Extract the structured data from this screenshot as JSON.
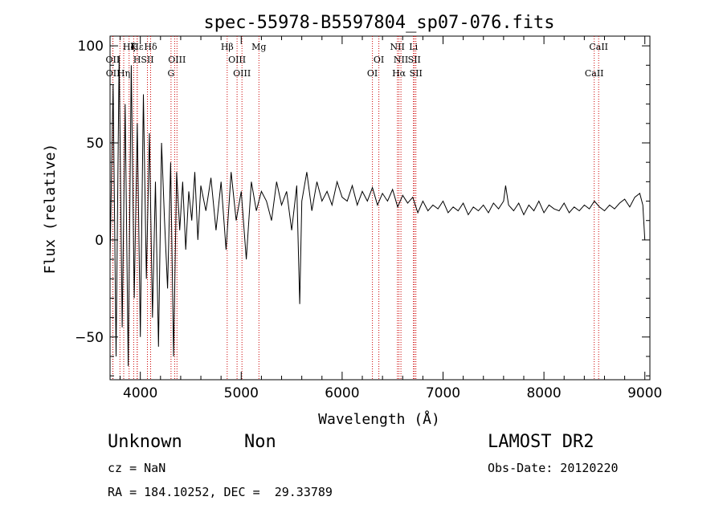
{
  "chart_data": {
    "type": "line",
    "title": "spec-55978-B5597804_sp07-076.fits",
    "xlabel": "Wavelength (Å)",
    "ylabel": "Flux (relative)",
    "xlim": [
      3700,
      9050
    ],
    "ylim": [
      -72,
      105
    ],
    "x_ticks": [
      4000,
      5000,
      6000,
      7000,
      8000,
      9000
    ],
    "y_ticks": [
      -50,
      0,
      50,
      100
    ],
    "grid": false,
    "line_color": "#000000",
    "marker_color": "#cc0000",
    "series": [
      {
        "x": [
          3700,
          3730,
          3760,
          3790,
          3820,
          3850,
          3880,
          3910,
          3940,
          3970,
          4000,
          4030,
          4060,
          4090,
          4120,
          4150,
          4180,
          4210,
          4240,
          4270,
          4300,
          4330,
          4360,
          4390,
          4420,
          4450,
          4480,
          4510,
          4540,
          4570,
          4600,
          4650,
          4700,
          4750,
          4800,
          4850,
          4900,
          4950,
          5000,
          5050,
          5100,
          5150,
          5200,
          5250,
          5300,
          5350,
          5400,
          5450,
          5500,
          5550,
          5580,
          5600,
          5650,
          5700,
          5750,
          5800,
          5850,
          5900,
          5950,
          6000,
          6050,
          6100,
          6150,
          6200,
          6250,
          6300,
          6350,
          6400,
          6450,
          6500,
          6550,
          6600,
          6650,
          6700,
          6750,
          6800,
          6850,
          6900,
          6950,
          7000,
          7050,
          7100,
          7150,
          7200,
          7250,
          7300,
          7350,
          7400,
          7450,
          7500,
          7550,
          7600,
          7620,
          7650,
          7700,
          7750,
          7800,
          7850,
          7900,
          7950,
          8000,
          8050,
          8100,
          8150,
          8200,
          8250,
          8300,
          8350,
          8400,
          8450,
          8500,
          8550,
          8600,
          8650,
          8700,
          8750,
          8800,
          8850,
          8900,
          8950,
          8980,
          9000
        ],
        "y": [
          -10,
          80,
          -60,
          95,
          -45,
          70,
          -65,
          90,
          -30,
          60,
          -50,
          75,
          -20,
          55,
          -40,
          30,
          -55,
          50,
          10,
          -25,
          40,
          -60,
          35,
          5,
          30,
          -5,
          25,
          10,
          35,
          0,
          28,
          15,
          32,
          5,
          30,
          -5,
          35,
          10,
          25,
          -10,
          30,
          15,
          25,
          20,
          10,
          30,
          18,
          25,
          5,
          28,
          -33,
          20,
          35,
          15,
          30,
          20,
          25,
          18,
          30,
          22,
          20,
          28,
          18,
          25,
          20,
          27,
          18,
          24,
          20,
          26,
          17,
          23,
          19,
          22,
          14,
          20,
          15,
          18,
          16,
          20,
          14,
          17,
          15,
          19,
          13,
          17,
          15,
          18,
          14,
          19,
          16,
          20,
          28,
          18,
          15,
          19,
          13,
          18,
          15,
          20,
          14,
          18,
          16,
          15,
          19,
          14,
          17,
          15,
          18,
          16,
          20,
          17,
          15,
          18,
          16,
          19,
          21,
          17,
          22,
          24,
          18,
          0
        ]
      }
    ],
    "line_markers": [
      {
        "name": "Hε",
        "wl": 3970,
        "row": 0,
        "pos": "top"
      },
      {
        "name": "Hζ",
        "wl": 3889,
        "row": 0,
        "pos": "top"
      },
      {
        "name": "K",
        "wl": 3934,
        "row": 0,
        "pos": "top"
      },
      {
        "name": "Hδ",
        "wl": 4102,
        "row": 0,
        "pos": "top"
      },
      {
        "name": "OII",
        "wl": 3727,
        "row": 1,
        "pos": "top"
      },
      {
        "name": "H",
        "wl": 3968,
        "row": 1,
        "pos": "top"
      },
      {
        "name": "SII",
        "wl": 4070,
        "row": 1,
        "pos": "top"
      },
      {
        "name": "OIII",
        "wl": 4363,
        "row": 1,
        "pos": "top"
      },
      {
        "name": "OII",
        "wl": 3729,
        "row": 2,
        "pos": "top"
      },
      {
        "name": "Hη",
        "wl": 3835,
        "row": 2,
        "pos": "top"
      },
      {
        "name": "G",
        "wl": 4304,
        "row": 2,
        "pos": "top"
      },
      {
        "name": "Hβ",
        "wl": 4861,
        "row": 0,
        "pos": "top"
      },
      {
        "name": "Mg",
        "wl": 5175,
        "row": 0,
        "pos": "top"
      },
      {
        "name": "OIII",
        "wl": 4959,
        "row": 1,
        "pos": "top"
      },
      {
        "name": "OIII",
        "wl": 5007,
        "row": 2,
        "pos": "top"
      },
      {
        "name": "NII",
        "wl": 6548,
        "row": 0,
        "pos": "top"
      },
      {
        "name": "Li",
        "wl": 6707,
        "row": 0,
        "pos": "top"
      },
      {
        "name": "OI",
        "wl": 6364,
        "row": 1,
        "pos": "top"
      },
      {
        "name": "NII",
        "wl": 6583,
        "row": 1,
        "pos": "top"
      },
      {
        "name": "SII",
        "wl": 6716,
        "row": 1,
        "pos": "top"
      },
      {
        "name": "OI",
        "wl": 6300,
        "row": 2,
        "pos": "top"
      },
      {
        "name": "Hα",
        "wl": 6563,
        "row": 2,
        "pos": "top"
      },
      {
        "name": "SII",
        "wl": 6731,
        "row": 2,
        "pos": "top"
      },
      {
        "name": "CaII",
        "wl": 8542,
        "row": 0,
        "pos": "top"
      },
      {
        "name": "CaII",
        "wl": 8498,
        "row": 2,
        "pos": "top"
      }
    ],
    "line_wavelengths": [
      3727,
      3729,
      3798,
      3835,
      3889,
      3934,
      3968,
      3970,
      4070,
      4102,
      4304,
      4340,
      4363,
      4861,
      4959,
      5007,
      5175,
      6300,
      6364,
      6548,
      6563,
      6583,
      6707,
      6716,
      6731,
      8498,
      8542
    ]
  },
  "info": {
    "class": "Unknown",
    "subclass": "Non",
    "survey": "LAMOST DR2",
    "cz": "cz = NaN",
    "obs_date": "Obs-Date: 20120220",
    "coords": "RA = 184.10252, DEC =  29.33789"
  }
}
